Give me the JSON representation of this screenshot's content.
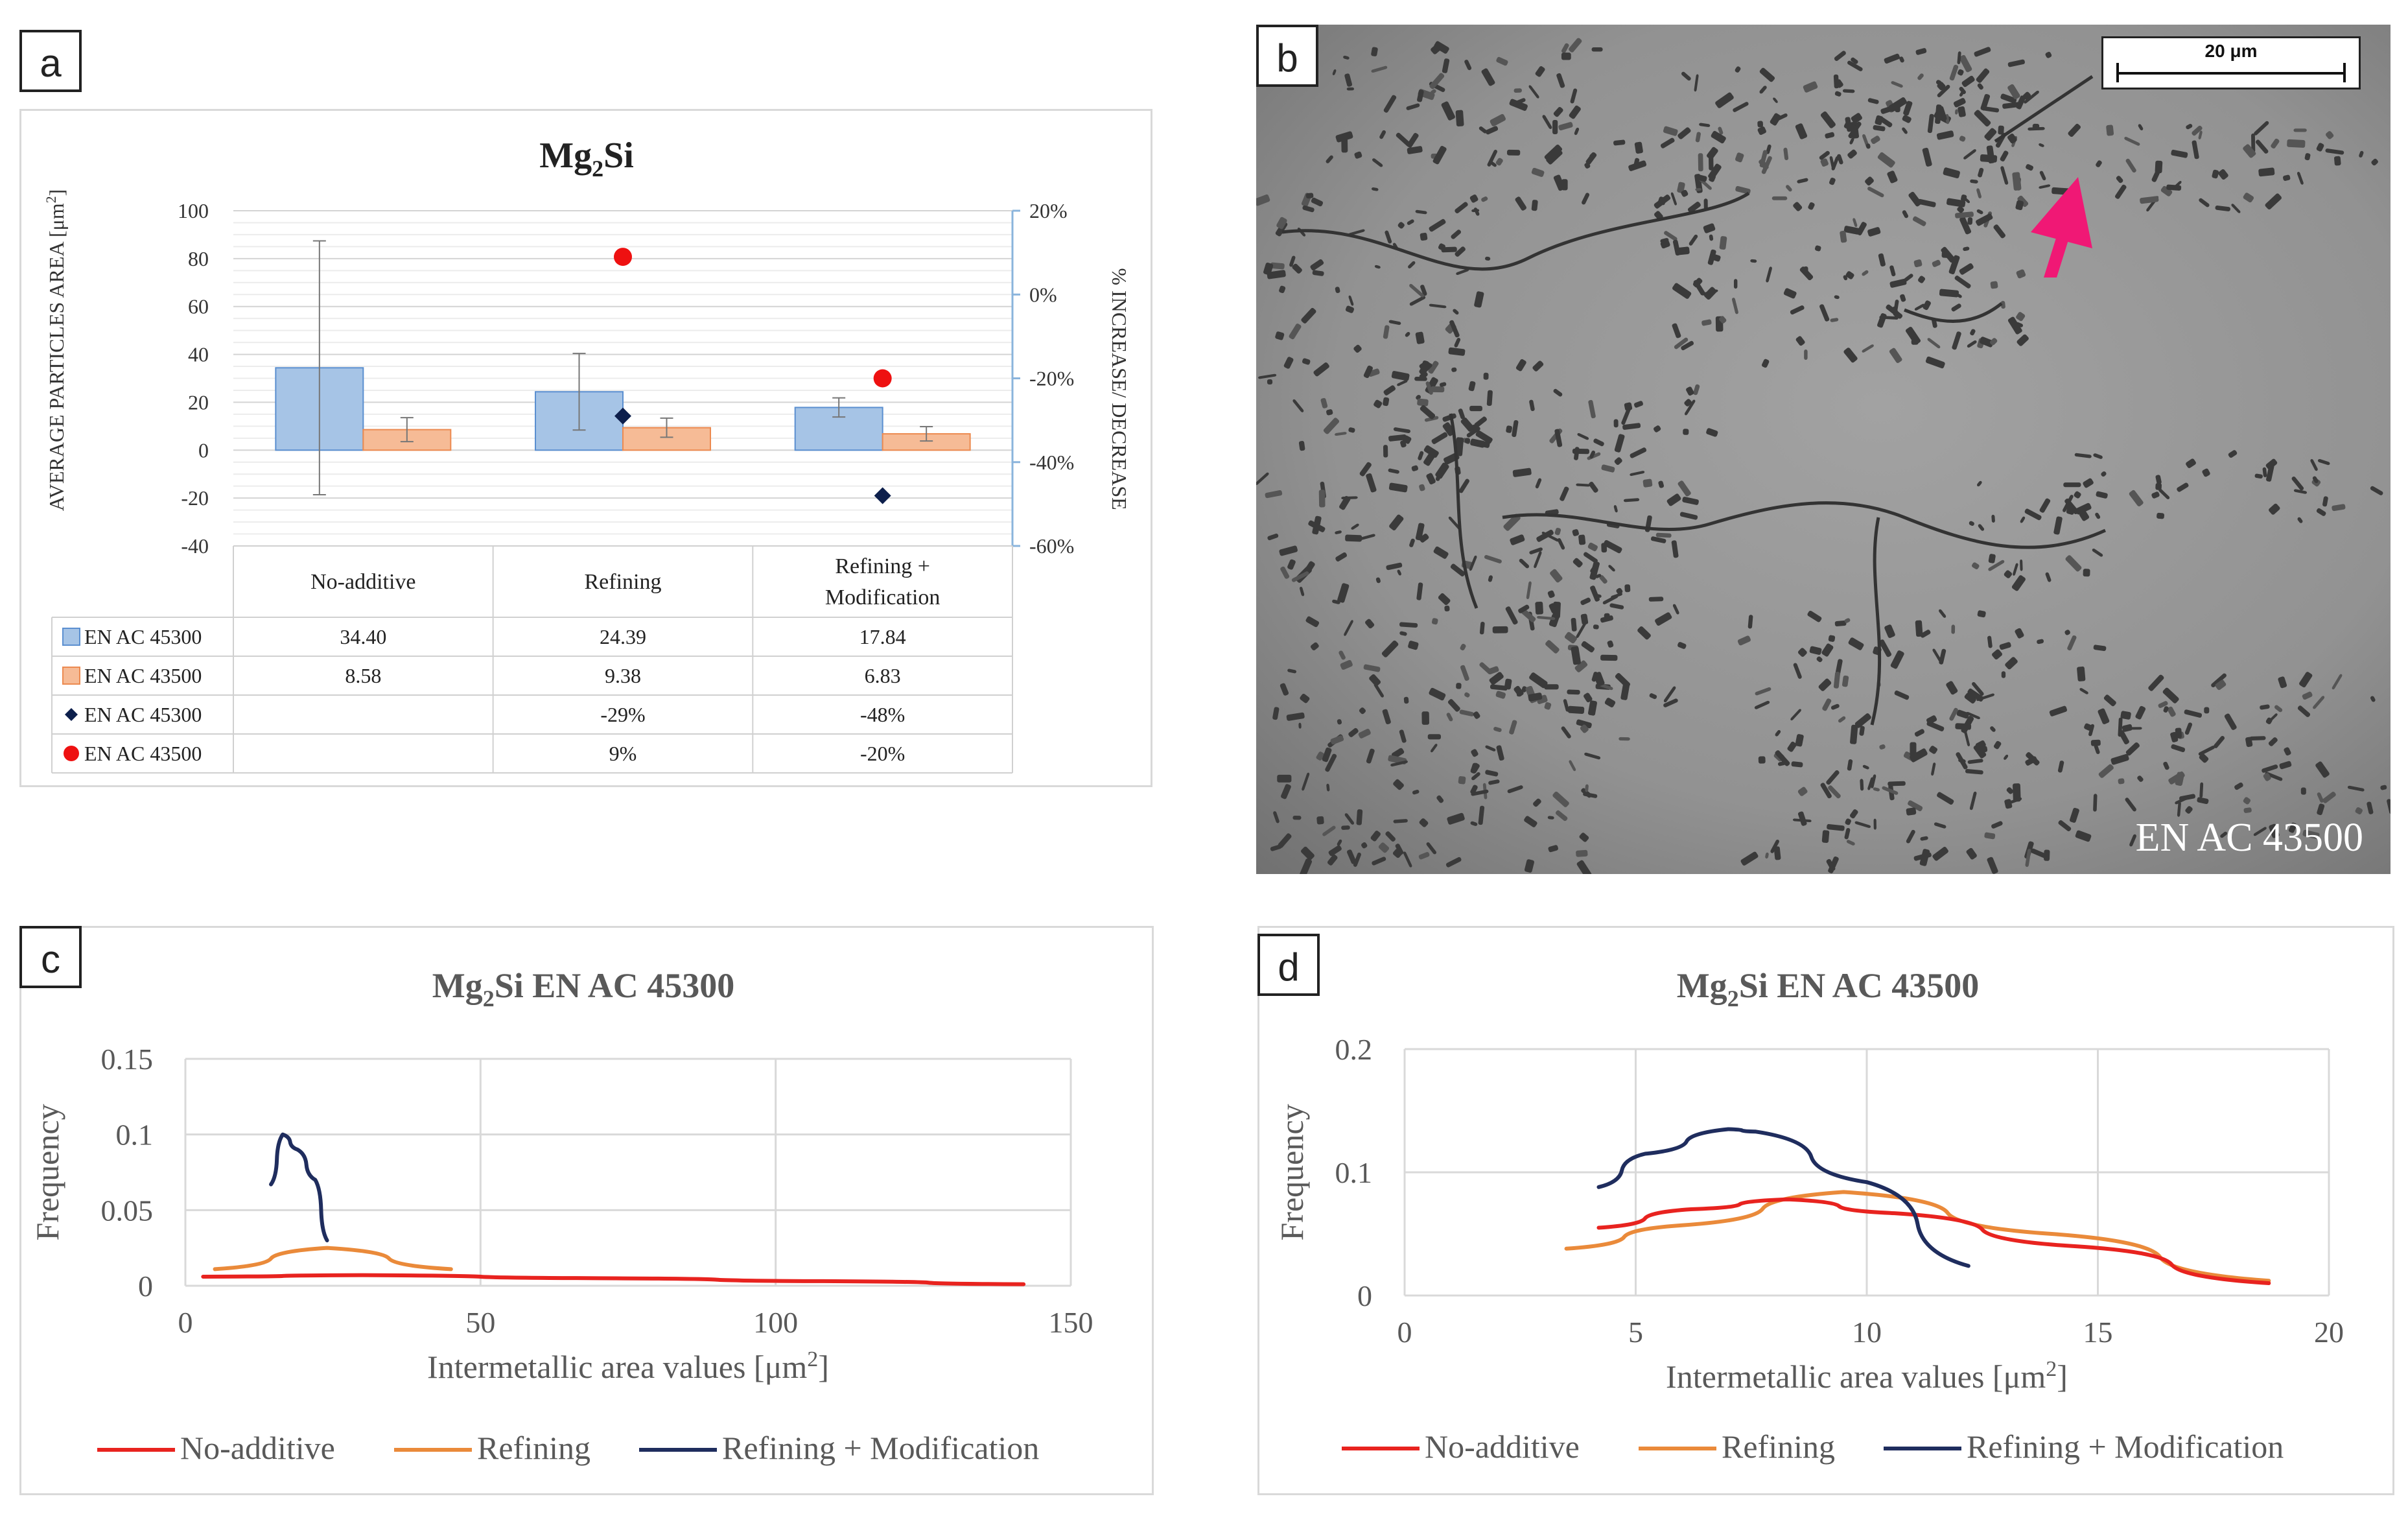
{
  "panel_a": {
    "letter": "a",
    "title_main": "Mg",
    "title_sub": "2",
    "title_tail": "Si",
    "y_left_label": "AVERAGE PARTICLES AREA [μm",
    "y_left_label_sup": "2",
    "y_left_label_end": "]",
    "y_right_label": "% INCREASE/ DECREASE",
    "table": {
      "col_headers": [
        "No-additive",
        "Refining",
        "Refining +",
        "Modification"
      ],
      "rows": [
        {
          "legend": "EN AC 45300",
          "values": [
            "34.40",
            "24.39",
            "17.84"
          ]
        },
        {
          "legend": "EN AC 43500",
          "values": [
            "8.58",
            "9.38",
            "6.83"
          ]
        },
        {
          "legend": "EN AC 45300",
          "values": [
            "",
            "-29%",
            "-48%"
          ]
        },
        {
          "legend": "EN AC 43500",
          "values": [
            "",
            "9%",
            "-20%"
          ]
        }
      ]
    }
  },
  "panel_b": {
    "letter": "b",
    "scale_label": "20 μm",
    "caption": "EN AC 43500"
  },
  "panel_c": {
    "letter": "c"
  },
  "panel_d": {
    "letter": "d"
  },
  "colors": {
    "bar_45300": "#a6c4e6",
    "bar_43500": "#f6bb96",
    "diamond": "#0d1f4c",
    "dot": "#ee1111",
    "no_additive": "#e8231f",
    "refining": "#ea8a3a",
    "refining_mod": "#1f2d5e",
    "arrow": "#f01875"
  },
  "chart_data": [
    {
      "type": "bar",
      "title": "Mg2Si",
      "categories": [
        "No-additive",
        "Refining",
        "Refining + Modification"
      ],
      "series": [
        {
          "name": "EN AC 45300",
          "values": [
            34.4,
            24.39,
            17.84
          ],
          "errors": [
            53,
            16,
            4
          ]
        },
        {
          "name": "EN AC 43500",
          "values": [
            8.58,
            9.38,
            6.83
          ],
          "errors": [
            5,
            4,
            3
          ]
        }
      ],
      "secondary_series": [
        {
          "name": "EN AC 45300",
          "marker": "diamond",
          "values": [
            null,
            -29,
            -48
          ]
        },
        {
          "name": "EN AC 43500",
          "marker": "circle",
          "values": [
            null,
            9,
            -20
          ]
        }
      ],
      "ylim": [
        -40,
        100
      ],
      "yticks": [
        -40,
        -20,
        0,
        20,
        40,
        60,
        80,
        100
      ],
      "y2lim": [
        -60,
        20
      ],
      "y2ticks": [
        "-60%",
        "-40%",
        "-20%",
        "0%",
        "20%"
      ],
      "grid": true
    },
    {
      "type": "line",
      "title": "Mg2Si EN AC 45300",
      "xlabel": "Intermetallic area values [μm2]",
      "ylabel": "Frequency",
      "xlim": [
        0,
        150
      ],
      "ylim": [
        0,
        0.15
      ],
      "xticks": [
        "0",
        "50",
        "100",
        "150"
      ],
      "yticks": [
        "0",
        "0.05",
        "0.1",
        "0.15"
      ],
      "series": [
        {
          "name": "No-additive",
          "points": [
            [
              3,
              0.006
            ],
            [
              30,
              0.007
            ],
            [
              70,
              0.005
            ],
            [
              110,
              0.003
            ],
            [
              142,
              0.001
            ]
          ]
        },
        {
          "name": "Refining",
          "points": [
            [
              5,
              0.011
            ],
            [
              24,
              0.025
            ],
            [
              45,
              0.011
            ]
          ]
        },
        {
          "name": "Refining + Modification",
          "points": [
            [
              14.5,
              0.067
            ],
            [
              16.5,
              0.1
            ],
            [
              19,
              0.09
            ],
            [
              22,
              0.07
            ],
            [
              24,
              0.03
            ]
          ]
        }
      ],
      "legend": "bottom"
    },
    {
      "type": "line",
      "title": "Mg2Si EN AC 43500",
      "xlabel": "Intermetallic area values [μm2]",
      "ylabel": "Frequency",
      "xlim": [
        0,
        20
      ],
      "ylim": [
        0,
        0.2
      ],
      "xticks": [
        "0",
        "5",
        "10",
        "15",
        "20"
      ],
      "yticks": [
        "0",
        "0.1",
        "0.2"
      ],
      "series": [
        {
          "name": "No-additive",
          "points": [
            [
              4.2,
              0.055
            ],
            [
              6.2,
              0.07
            ],
            [
              8.3,
              0.078
            ],
            [
              10.5,
              0.067
            ],
            [
              14.5,
              0.04
            ],
            [
              18.7,
              0.01
            ]
          ]
        },
        {
          "name": "Refining",
          "points": [
            [
              3.5,
              0.038
            ],
            [
              6,
              0.057
            ],
            [
              9.5,
              0.084
            ],
            [
              14,
              0.05
            ],
            [
              18.7,
              0.012
            ]
          ]
        },
        {
          "name": "Refining + Modification",
          "points": [
            [
              4.2,
              0.088
            ],
            [
              5.2,
              0.115
            ],
            [
              7,
              0.135
            ],
            [
              7.6,
              0.133
            ],
            [
              10,
              0.092
            ],
            [
              12.2,
              0.024
            ]
          ]
        }
      ],
      "legend": "bottom"
    }
  ]
}
